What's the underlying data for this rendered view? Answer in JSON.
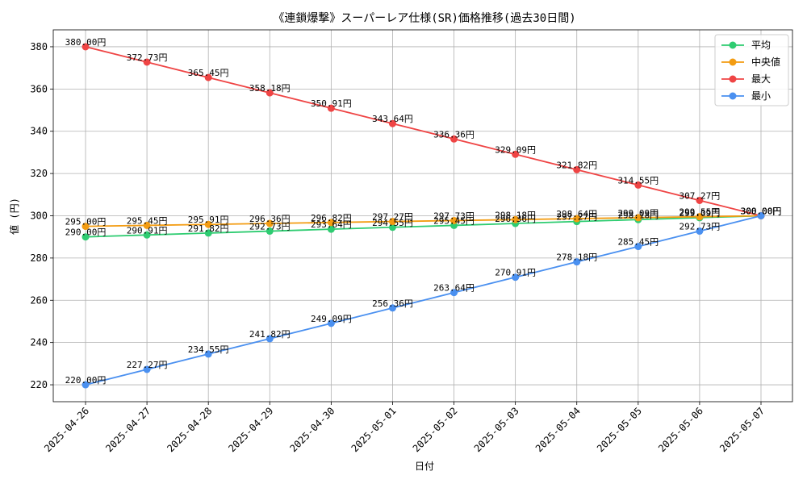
{
  "chart_data": {
    "type": "line",
    "title": "《連鎖爆撃》スーパーレア仕様(SR)価格推移(過去30日間)",
    "xlabel": "日付",
    "ylabel": "値 (円)",
    "categories": [
      "2025-04-26",
      "2025-04-27",
      "2025-04-28",
      "2025-04-29",
      "2025-04-30",
      "2025-05-01",
      "2025-05-02",
      "2025-05-03",
      "2025-05-04",
      "2025-05-05",
      "2025-05-06",
      "2025-05-07"
    ],
    "ylim": [
      212,
      388
    ],
    "yticks": [
      220,
      240,
      260,
      280,
      300,
      320,
      340,
      360,
      380
    ],
    "grid": true,
    "legend_position": "top-right",
    "value_suffix": "円",
    "series": [
      {
        "name": "平均",
        "color": "#2ecc71",
        "values": [
          290.0,
          290.91,
          291.82,
          292.73,
          293.64,
          294.55,
          295.45,
          296.36,
          297.27,
          298.18,
          299.09,
          300.0
        ]
      },
      {
        "name": "中央値",
        "color": "#f39c12",
        "values": [
          295.0,
          295.45,
          295.91,
          296.36,
          296.82,
          297.27,
          297.73,
          298.18,
          298.64,
          299.09,
          299.55,
          300.0
        ]
      },
      {
        "name": "最大",
        "color": "#ef4444",
        "values": [
          380.0,
          372.73,
          365.45,
          358.18,
          350.91,
          343.64,
          336.36,
          329.09,
          321.82,
          314.55,
          307.27,
          300.0
        ]
      },
      {
        "name": "最小",
        "color": "#4a90f0",
        "values": [
          220.0,
          227.27,
          234.55,
          241.82,
          249.09,
          256.36,
          263.64,
          270.91,
          278.18,
          285.45,
          292.73,
          300.0
        ]
      }
    ]
  }
}
